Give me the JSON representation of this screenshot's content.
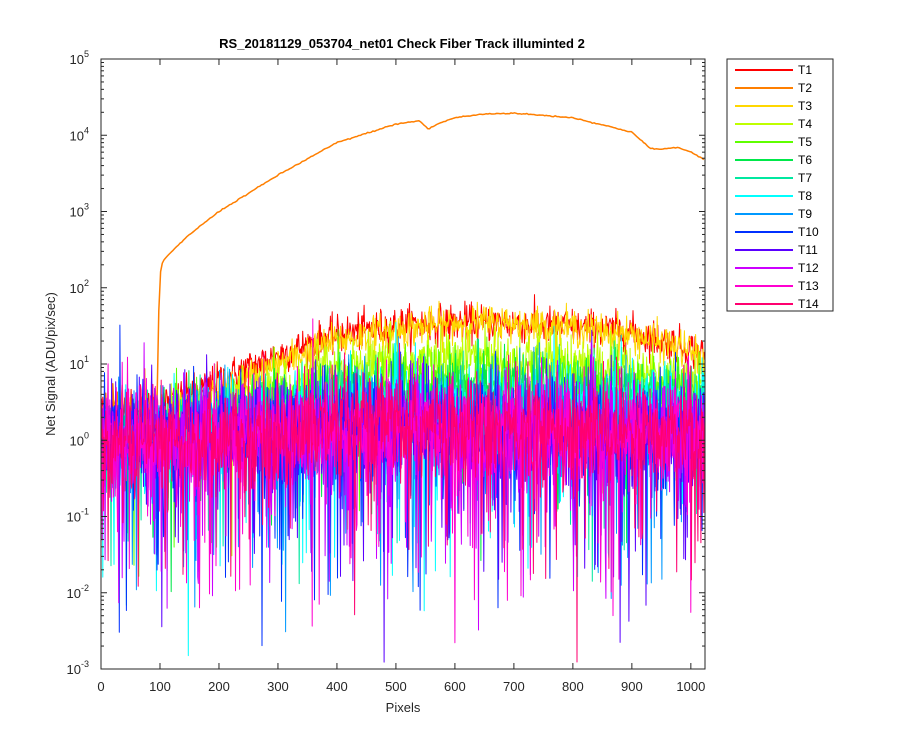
{
  "chart_data": {
    "type": "line",
    "title": "RS_20181129_053704_net01   Check Fiber     Track illuminted 2",
    "xlabel": "Pixels",
    "ylabel": "Net Signal (ADU/pix/sec)",
    "xlim": [
      0,
      1024
    ],
    "ylim": [
      0.001,
      100000
    ],
    "yscale": "log",
    "x_ticks": [
      0,
      100,
      200,
      300,
      400,
      500,
      600,
      700,
      800,
      900,
      1000
    ],
    "y_ticks": [
      {
        "base": "10",
        "exp": "-3",
        "value": 0.001
      },
      {
        "base": "10",
        "exp": "-2",
        "value": 0.01
      },
      {
        "base": "10",
        "exp": "-1",
        "value": 0.1
      },
      {
        "base": "10",
        "exp": "0",
        "value": 1
      },
      {
        "base": "10",
        "exp": "1",
        "value": 10
      },
      {
        "base": "10",
        "exp": "2",
        "value": 100
      },
      {
        "base": "10",
        "exp": "3",
        "value": 1000
      },
      {
        "base": "10",
        "exp": "4",
        "value": 10000
      },
      {
        "base": "10",
        "exp": "5",
        "value": 100000
      }
    ],
    "grid": false,
    "legend_position": "outside-top-right",
    "series": [
      {
        "name": "T1",
        "color": "#ff0000",
        "x": [
          0,
          100,
          150,
          200,
          300,
          400,
          500,
          600,
          650,
          700,
          800,
          900,
          1000,
          1024
        ],
        "y": [
          2.5,
          2.8,
          4,
          6,
          13,
          24,
          32,
          35,
          35,
          34,
          31,
          26,
          16,
          13
        ]
      },
      {
        "name": "T2",
        "color": "#ff7f00",
        "x": [
          95,
          98,
          100,
          105,
          110,
          150,
          200,
          300,
          400,
          500,
          540,
          555,
          570,
          600,
          650,
          700,
          800,
          900,
          930,
          950,
          975,
          1000,
          1024
        ],
        "y": [
          3,
          50,
          150,
          220,
          250,
          500,
          1000,
          3000,
          8000,
          14000,
          15500,
          12000,
          14000,
          17000,
          19000,
          19500,
          17000,
          11000,
          6800,
          6500,
          7000,
          6000,
          4700
        ]
      },
      {
        "name": "T3",
        "color": "#ffd700",
        "x": [
          0,
          100,
          150,
          200,
          300,
          400,
          500,
          600,
          650,
          700,
          800,
          900,
          1000,
          1024
        ],
        "y": [
          1.5,
          2.0,
          2.6,
          4,
          10,
          20,
          28,
          34,
          35,
          34,
          30,
          24,
          15,
          10
        ]
      },
      {
        "name": "T4",
        "color": "#bfff00",
        "x": [
          0,
          100,
          200,
          300,
          400,
          500,
          600,
          650,
          700,
          800,
          900,
          1000,
          1024
        ],
        "y": [
          1.2,
          1.5,
          2.5,
          5,
          8,
          10,
          12,
          12.5,
          12,
          10,
          8,
          6,
          5
        ]
      },
      {
        "name": "T5",
        "color": "#5fff00",
        "x": [
          0,
          100,
          200,
          300,
          400,
          500,
          600,
          700,
          800,
          900,
          1000,
          1024
        ],
        "y": [
          1.0,
          1.2,
          2,
          3.5,
          5,
          5.8,
          6.5,
          6.5,
          6,
          5,
          4,
          3.5
        ]
      },
      {
        "name": "T6",
        "color": "#00e84a",
        "x": [
          0,
          100,
          200,
          300,
          400,
          500,
          600,
          700,
          800,
          900,
          1000,
          1024
        ],
        "y": [
          1.0,
          1.1,
          1.6,
          2.5,
          3.5,
          4,
          4.5,
          4.5,
          4,
          3.5,
          3,
          2.8
        ]
      },
      {
        "name": "T7",
        "color": "#00e8a0",
        "x": [
          0,
          100,
          200,
          300,
          400,
          500,
          600,
          700,
          800,
          900,
          1000,
          1024
        ],
        "y": [
          0.9,
          1.0,
          1.4,
          2,
          2.6,
          3,
          3.2,
          3.2,
          3,
          2.8,
          2.5,
          2.3
        ]
      },
      {
        "name": "T8",
        "color": "#00ffff",
        "x": [
          0,
          100,
          200,
          300,
          400,
          500,
          600,
          700,
          800,
          900,
          1000,
          1024
        ],
        "y": [
          0.9,
          1.0,
          1.3,
          1.8,
          2.2,
          2.5,
          2.7,
          2.7,
          2.6,
          2.4,
          2.2,
          2.0
        ]
      },
      {
        "name": "T9",
        "color": "#0099ff",
        "x": [
          0,
          500,
          1024
        ],
        "y": [
          1.0,
          1.6,
          1.3
        ]
      },
      {
        "name": "T10",
        "color": "#0030ff",
        "x": [
          0,
          500,
          1024
        ],
        "y": [
          1.0,
          1.5,
          1.2
        ]
      },
      {
        "name": "T11",
        "color": "#5a00ff",
        "x": [
          0,
          500,
          1024
        ],
        "y": [
          0.9,
          1.4,
          1.2
        ]
      },
      {
        "name": "T12",
        "color": "#cc00ff",
        "x": [
          0,
          500,
          1024
        ],
        "y": [
          1.0,
          1.5,
          1.2
        ]
      },
      {
        "name": "T13",
        "color": "#ff00d0",
        "x": [
          0,
          500,
          1024
        ],
        "y": [
          0.9,
          1.4,
          1.2
        ]
      },
      {
        "name": "T14",
        "color": "#ff0070",
        "x": [
          0,
          500,
          1024
        ],
        "y": [
          1.0,
          1.5,
          1.3
        ]
      }
    ]
  }
}
